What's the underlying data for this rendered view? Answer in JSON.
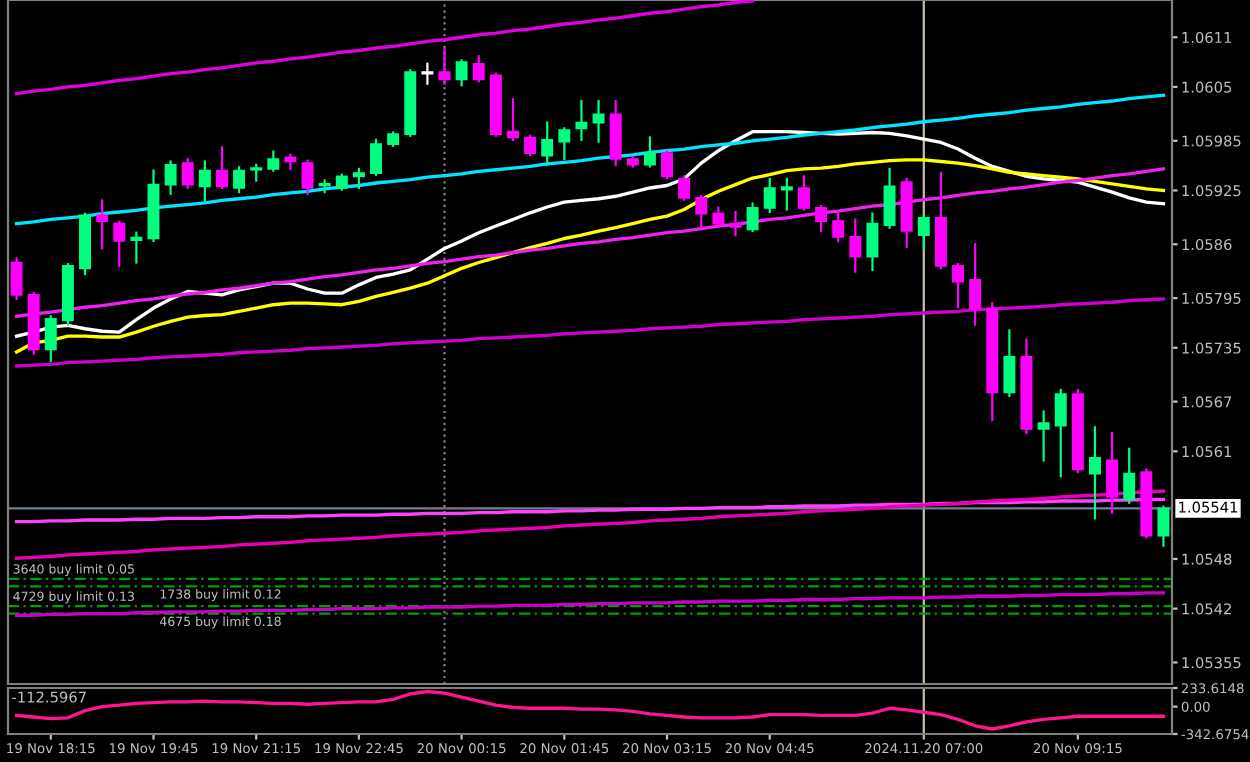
{
  "chart_data": [
    {
      "type": "candlestick",
      "categories": [
        null,
        null,
        "19 Nov 18:15",
        null,
        null,
        null,
        null,
        null,
        "19 Nov 19:45",
        null,
        null,
        null,
        null,
        null,
        "19 Nov 21:15",
        null,
        null,
        null,
        null,
        null,
        "19 Nov 22:45",
        null,
        null,
        null,
        null,
        null,
        "20 Nov 00:15",
        null,
        null,
        null,
        null,
        null,
        "20 Nov 01:45",
        null,
        null,
        null,
        null,
        null,
        "20 Nov 03:15",
        null,
        null,
        null,
        null,
        null,
        "20 Nov 04:45",
        null,
        null,
        null,
        null,
        null,
        null,
        null,
        null,
        "2024.11.20 07:00",
        null,
        null,
        null,
        null,
        null,
        null,
        null,
        null,
        "20 Nov 09:15",
        null,
        null,
        null,
        null,
        null
      ],
      "ohlc": [
        [
          1.05838,
          1.05843,
          1.05794,
          1.05799
        ],
        [
          1.05799,
          1.05801,
          1.05728,
          1.05733
        ],
        [
          1.05733,
          1.05773,
          1.05719,
          1.0577
        ],
        [
          1.05768,
          1.05836,
          1.05763,
          1.05834
        ],
        [
          1.05831,
          1.05897,
          1.05824,
          1.05895
        ],
        [
          1.05895,
          1.05913,
          1.05855,
          1.05888
        ],
        [
          1.05885,
          1.05887,
          1.05834,
          1.05864
        ],
        [
          1.05865,
          1.05874,
          1.05838,
          1.05868
        ],
        [
          1.05867,
          1.05949,
          1.05864,
          1.05932
        ],
        [
          1.05932,
          1.0596,
          1.05921,
          1.05956
        ],
        [
          1.05958,
          1.05963,
          1.05928,
          1.05932
        ],
        [
          1.0593,
          1.0596,
          1.05913,
          1.05949
        ],
        [
          1.05949,
          1.05977,
          1.05928,
          1.0593
        ],
        [
          1.05928,
          1.05953,
          1.05923,
          1.05949
        ],
        [
          1.0595,
          1.05956,
          1.05937,
          1.05952
        ],
        [
          1.05951,
          1.05972,
          1.05949,
          1.05963
        ],
        [
          1.05965,
          1.05968,
          1.05951,
          1.0596
        ],
        [
          1.05958,
          1.05961,
          1.05921,
          1.05928
        ],
        [
          1.05931,
          1.05937,
          1.05923,
          1.05933
        ],
        [
          1.05928,
          1.05944,
          1.05926,
          1.05942
        ],
        [
          1.05942,
          1.05951,
          1.05928,
          1.05946
        ],
        [
          1.05946,
          1.05986,
          1.05944,
          1.05981
        ],
        [
          1.05981,
          1.05995,
          1.05979,
          1.05993
        ],
        [
          1.05993,
          1.0607,
          1.05991,
          1.06068
        ],
        [
          1.06068,
          1.06078,
          1.06054,
          1.06066
        ],
        [
          1.06068,
          1.06096,
          1.06054,
          1.06059
        ],
        [
          1.06059,
          1.06082,
          1.06052,
          1.0608
        ],
        [
          1.06078,
          1.06087,
          1.06057,
          1.06059
        ],
        [
          1.06064,
          1.06066,
          1.05991,
          1.05993
        ],
        [
          1.05996,
          1.06035,
          1.05986,
          1.05989
        ],
        [
          1.05989,
          1.05991,
          1.05968,
          1.0597
        ],
        [
          1.05967,
          1.06007,
          1.05956,
          1.05986
        ],
        [
          1.05984,
          1.06,
          1.05963,
          1.05998
        ],
        [
          1.06,
          1.06033,
          1.05986,
          1.06007
        ],
        [
          1.06007,
          1.06033,
          1.05984,
          1.06017
        ],
        [
          1.06017,
          1.06033,
          1.05956,
          1.05963
        ],
        [
          1.05963,
          1.05965,
          1.05954,
          1.05956
        ],
        [
          1.05956,
          1.05989,
          1.05954,
          1.0597
        ],
        [
          1.0597,
          1.05972,
          1.0594,
          1.05942
        ],
        [
          1.05939,
          1.05942,
          1.05914,
          1.05916
        ],
        [
          1.05916,
          1.05918,
          1.05881,
          1.05897
        ],
        [
          1.05897,
          1.05904,
          1.05881,
          1.05885
        ],
        [
          1.05885,
          1.05899,
          1.05871,
          1.05881
        ],
        [
          1.05878,
          1.05909,
          1.05876,
          1.05904
        ],
        [
          1.05904,
          1.05939,
          1.05899,
          1.05928
        ],
        [
          1.05926,
          1.05939,
          1.05902,
          1.05929
        ],
        [
          1.05928,
          1.05942,
          1.05902,
          1.05904
        ],
        [
          1.05904,
          1.05906,
          1.05876,
          1.05888
        ],
        [
          1.05888,
          1.05897,
          1.05864,
          1.05869
        ],
        [
          1.05869,
          1.0589,
          1.05827,
          1.05845
        ],
        [
          1.05845,
          1.05897,
          1.05829,
          1.05885
        ],
        [
          1.05883,
          1.05951,
          1.0588,
          1.0593
        ],
        [
          1.05935,
          1.05939,
          1.05857,
          1.05876
        ],
        [
          1.05871,
          1.05894,
          1.05855,
          1.05892
        ],
        [
          1.05892,
          1.05946,
          1.05831,
          1.05834
        ],
        [
          1.05834,
          1.05836,
          1.05784,
          1.05815
        ],
        [
          1.05817,
          1.0586,
          1.05763,
          1.05782
        ],
        [
          1.05782,
          1.05789,
          1.05648,
          1.05681
        ],
        [
          1.05681,
          1.05756,
          1.05677,
          1.05724
        ],
        [
          1.05724,
          1.05745,
          1.05632,
          1.05637
        ],
        [
          1.05637,
          1.05658,
          1.05599,
          1.05644
        ],
        [
          1.05641,
          1.05684,
          1.0558,
          1.05679
        ],
        [
          1.05679,
          1.05684,
          1.05585,
          1.05588
        ],
        [
          1.05583,
          1.05639,
          1.05529,
          1.05602
        ],
        [
          1.05599,
          1.05632,
          1.05536,
          1.05555
        ],
        [
          1.05552,
          1.05613,
          1.05548,
          1.05583
        ],
        [
          1.05585,
          1.05588,
          1.05506,
          1.05508
        ],
        [
          1.05508,
          1.05543,
          1.05496,
          1.05541
        ]
      ],
      "colors": [
        "#ff00ff",
        "#ff00ff",
        "#00ff7f",
        "#00ff7f",
        "#00ff7f",
        "#ff00ff",
        "#ff00ff",
        "#00ff7f",
        "#00ff7f",
        "#00ff7f",
        "#ff00ff",
        "#00ff7f",
        "#ff00ff",
        "#00ff7f",
        "#00ff7f",
        "#00ff7f",
        "#ff00ff",
        "#ff00ff",
        "#00ff7f",
        "#00ff7f",
        "#00ff7f",
        "#00ff7f",
        "#00ff7f",
        "#00ff7f",
        "#ffffff",
        "#ff00ff",
        "#00ff7f",
        "#ff00ff",
        "#ff00ff",
        "#ff00ff",
        "#ff00ff",
        "#00ff7f",
        "#00ff7f",
        "#00ff7f",
        "#00ff7f",
        "#ff00ff",
        "#ff00ff",
        "#00ff7f",
        "#ff00ff",
        "#ff00ff",
        "#ff00ff",
        "#ff00ff",
        "#ff00ff",
        "#00ff7f",
        "#00ff7f",
        "#00ff7f",
        "#ff00ff",
        "#ff00ff",
        "#ff00ff",
        "#ff00ff",
        "#00ff7f",
        "#00ff7f",
        "#ff00ff",
        "#00ff7f",
        "#ff00ff",
        "#ff00ff",
        "#ff00ff",
        "#ff00ff",
        "#00ff7f",
        "#ff00ff",
        "#00ff7f",
        "#00ff7f",
        "#ff00ff",
        "#00ff7f",
        "#ff00ff",
        "#00ff7f",
        "#ff00ff",
        "#00ff7f"
      ],
      "series": [
        {
          "type": "line",
          "color": "#ffffff",
          "values": [
            1.05749,
            1.05754,
            1.0576,
            1.05762,
            1.05758,
            1.05755,
            1.05754,
            1.05769,
            1.05783,
            1.05794,
            1.05803,
            1.05801,
            1.05799,
            1.05805,
            1.05809,
            1.05813,
            1.05813,
            1.05806,
            1.05801,
            1.05801,
            1.05811,
            1.0582,
            1.05824,
            1.05829,
            1.05842,
            1.05855,
            1.05864,
            1.05874,
            1.05882,
            1.0589,
            1.05898,
            1.05905,
            1.05911,
            1.05913,
            1.05915,
            1.05918,
            1.05923,
            1.05928,
            1.05931,
            1.05939,
            1.05958,
            1.05973,
            1.05985,
            1.05996,
            1.05996,
            1.05996,
            1.05995,
            1.05994,
            1.05993,
            1.05994,
            1.05995,
            1.05994,
            1.05991,
            1.05987,
            1.05983,
            1.05975,
            1.05964,
            1.05954,
            1.05948,
            1.05942,
            1.05939,
            1.05937,
            1.05935,
            1.05929,
            1.05923,
            1.05916,
            1.05911,
            1.05909
          ]
        },
        {
          "type": "line",
          "color": "#ffff00",
          "values": [
            1.0573,
            1.05741,
            1.05744,
            1.05749,
            1.05749,
            1.05748,
            1.05748,
            1.05754,
            1.05761,
            1.05767,
            1.05772,
            1.05774,
            1.05775,
            1.05779,
            1.05783,
            1.05787,
            1.05789,
            1.05789,
            1.05788,
            1.05787,
            1.05791,
            1.05797,
            1.05802,
            1.05807,
            1.05813,
            1.05822,
            1.05831,
            1.05838,
            1.05844,
            1.0585,
            1.05856,
            1.05861,
            1.05867,
            1.05871,
            1.05876,
            1.0588,
            1.05885,
            1.0589,
            1.05894,
            1.05902,
            1.05914,
            1.05924,
            1.05932,
            1.0594,
            1.05944,
            1.05949,
            1.05951,
            1.05952,
            1.05954,
            1.05957,
            1.05959,
            1.05961,
            1.05962,
            1.05962,
            1.0596,
            1.05958,
            1.05955,
            1.05951,
            1.05947,
            1.05945,
            1.05943,
            1.05941,
            1.05939,
            1.05936,
            1.05933,
            1.0593,
            1.05927,
            1.05925
          ]
        },
        {
          "type": "line",
          "color": "#e000e0",
          "values": [
            1.06042,
            1.06045,
            1.06047,
            1.0605,
            1.06052,
            1.06055,
            1.06058,
            1.0606,
            1.06063,
            1.06066,
            1.06068,
            1.06071,
            1.06073,
            1.06076,
            1.06079,
            1.06081,
            1.06084,
            1.06086,
            1.06089,
            1.06092,
            1.06094,
            1.06097,
            1.06099,
            1.06102,
            1.06105,
            1.06107,
            1.0611,
            1.06113,
            1.06115,
            1.06118,
            1.0612,
            1.06123,
            1.06126,
            1.06128,
            1.06131,
            1.06133,
            1.06136,
            1.06139,
            1.06141,
            1.06144,
            1.06147,
            1.06149,
            1.06152,
            1.06154,
            null,
            null,
            null,
            null,
            null,
            null,
            null,
            null,
            null,
            null,
            null,
            null,
            null,
            null,
            null,
            null,
            null,
            null,
            null,
            null,
            null,
            null,
            null,
            null
          ]
        },
        {
          "type": "line",
          "color": "#00e5ff",
          "values": [
            1.05885,
            1.05887,
            1.0589,
            1.05892,
            1.05894,
            1.05897,
            1.05899,
            1.05901,
            1.05904,
            1.05906,
            1.05908,
            1.0591,
            1.05913,
            1.05915,
            1.05917,
            1.0592,
            1.05922,
            1.05924,
            1.05927,
            1.05929,
            1.05931,
            1.05934,
            1.05936,
            1.05938,
            1.05941,
            1.05943,
            1.05945,
            1.05948,
            1.0595,
            1.05952,
            1.05954,
            1.05957,
            1.05959,
            1.05961,
            1.05964,
            1.05966,
            1.05968,
            1.05971,
            1.05973,
            1.05975,
            1.05978,
            1.0598,
            1.05982,
            1.05985,
            1.05987,
            1.05989,
            1.05992,
            1.05994,
            1.05996,
            1.05998,
            1.06001,
            1.06003,
            1.06005,
            1.06008,
            1.0601,
            1.06012,
            1.06015,
            1.06017,
            1.06019,
            1.06022,
            1.06024,
            1.06026,
            1.06029,
            1.06031,
            1.06033,
            1.06036,
            1.06038,
            1.0604
          ]
        },
        {
          "type": "line",
          "color": "#f020f0",
          "values": [
            1.05773,
            1.05776,
            1.05778,
            1.05781,
            1.05784,
            1.05786,
            1.05789,
            1.05792,
            1.05794,
            1.05797,
            1.058,
            1.05802,
            1.05805,
            1.05807,
            1.0581,
            1.05813,
            1.05815,
            1.05818,
            1.05821,
            1.05823,
            1.05826,
            1.05829,
            1.05831,
            1.05834,
            1.05837,
            1.05839,
            1.05842,
            1.05845,
            1.05847,
            1.0585,
            1.05853,
            1.05855,
            1.05858,
            1.05861,
            1.05863,
            1.05866,
            1.05868,
            1.05871,
            1.05874,
            1.05876,
            1.05879,
            1.05882,
            1.05884,
            1.05887,
            1.0589,
            1.05892,
            1.05895,
            1.05898,
            1.059,
            1.05903,
            1.05906,
            1.05908,
            1.05911,
            1.05914,
            1.05916,
            1.05919,
            1.05922,
            1.05924,
            1.05927,
            1.05929,
            1.05932,
            1.05935,
            1.05937,
            1.0594,
            1.05943,
            1.05945,
            1.05948,
            1.05951
          ]
        },
        {
          "type": "line",
          "color": "#d000d0",
          "values": [
            1.05713,
            1.05714,
            1.05715,
            1.05717,
            1.05718,
            1.05719,
            1.0572,
            1.05721,
            1.05723,
            1.05724,
            1.05725,
            1.05726,
            1.05727,
            1.05729,
            1.0573,
            1.05731,
            1.05732,
            1.05734,
            1.05735,
            1.05736,
            1.05737,
            1.05738,
            1.0574,
            1.05741,
            1.05742,
            1.05743,
            1.05744,
            1.05746,
            1.05747,
            1.05748,
            1.05749,
            1.0575,
            1.05752,
            1.05753,
            1.05754,
            1.05755,
            1.05756,
            1.05758,
            1.05759,
            1.0576,
            1.05761,
            1.05763,
            1.05764,
            1.05765,
            1.05766,
            1.05767,
            1.05769,
            1.0577,
            1.05771,
            1.05772,
            1.05773,
            1.05775,
            1.05776,
            1.05777,
            1.05778,
            1.05779,
            1.05781,
            1.05782,
            1.05783,
            1.05784,
            1.05785,
            1.05787,
            1.05788,
            1.05789,
            1.0579,
            1.05792,
            1.05793,
            1.05794
          ]
        },
        {
          "type": "line",
          "color": "#ff40ff",
          "values": [
            1.05525,
            1.05525,
            1.05526,
            1.05526,
            1.05527,
            1.05527,
            1.05527,
            1.05528,
            1.05528,
            1.05529,
            1.05529,
            1.05529,
            1.0553,
            1.0553,
            1.05531,
            1.05531,
            1.05531,
            1.05532,
            1.05532,
            1.05533,
            1.05533,
            1.05533,
            1.05534,
            1.05534,
            1.05535,
            1.05535,
            1.05535,
            1.05536,
            1.05536,
            1.05537,
            1.05537,
            1.05537,
            1.05538,
            1.05538,
            1.05539,
            1.05539,
            1.0554,
            1.0554,
            1.0554,
            1.05541,
            1.05541,
            1.05542,
            1.05542,
            1.05542,
            1.05543,
            1.05543,
            1.05544,
            1.05544,
            1.05544,
            1.05545,
            1.05545,
            1.05546,
            1.05546,
            1.05546,
            1.05547,
            1.05547,
            1.05548,
            1.05548,
            1.05548,
            1.05549,
            1.05549,
            1.0555,
            1.0555,
            1.0555,
            1.05551,
            1.05551,
            1.05552,
            1.05552
          ]
        },
        {
          "type": "line",
          "color": "#e800b8",
          "values": [
            1.05481,
            1.05482,
            1.05483,
            1.05485,
            1.05486,
            1.05487,
            1.05488,
            1.05489,
            1.05491,
            1.05492,
            1.05493,
            1.05494,
            1.05495,
            1.05497,
            1.05498,
            1.05499,
            1.055,
            1.05502,
            1.05503,
            1.05504,
            1.05505,
            1.05506,
            1.05508,
            1.05509,
            1.0551,
            1.05511,
            1.05512,
            1.05514,
            1.05515,
            1.05516,
            1.05517,
            1.05518,
            1.0552,
            1.05521,
            1.05522,
            1.05523,
            1.05524,
            1.05526,
            1.05527,
            1.05528,
            1.05529,
            1.05531,
            1.05532,
            1.05533,
            1.05534,
            1.05535,
            1.05537,
            1.05538,
            1.05539,
            1.0554,
            1.05541,
            1.05543,
            1.05544,
            1.05545,
            1.05546,
            1.05547,
            1.05549,
            1.0555,
            1.05551,
            1.05552,
            1.05553,
            1.05555,
            1.05556,
            1.05557,
            1.05558,
            1.0556,
            1.05561,
            1.05562
          ]
        },
        {
          "type": "line",
          "color": "#c800c8",
          "values": [
            1.05412,
            1.05412,
            1.05413,
            1.05413,
            1.05414,
            1.05414,
            1.05414,
            1.05415,
            1.05415,
            1.05416,
            1.05416,
            1.05416,
            1.05417,
            1.05417,
            1.05418,
            1.05418,
            1.05418,
            1.05419,
            1.05419,
            1.0542,
            1.0542,
            1.0542,
            1.05421,
            1.05421,
            1.05422,
            1.05422,
            1.05422,
            1.05423,
            1.05423,
            1.05424,
            1.05424,
            1.05424,
            1.05425,
            1.05425,
            1.05426,
            1.05426,
            1.05427,
            1.05427,
            1.05427,
            1.05428,
            1.05428,
            1.05429,
            1.05429,
            1.05429,
            1.0543,
            1.0543,
            1.05431,
            1.05431,
            1.05431,
            1.05432,
            1.05432,
            1.05433,
            1.05433,
            1.05433,
            1.05434,
            1.05434,
            1.05435,
            1.05435,
            1.05435,
            1.05436,
            1.05436,
            1.05437,
            1.05437,
            1.05437,
            1.05438,
            1.05438,
            1.05439,
            1.05439
          ]
        }
      ],
      "ylim": [
        1.05329,
        1.06155
      ],
      "yticks": [
        1.0611,
        1.0605,
        1.05985,
        1.05925,
        1.0586,
        1.05795,
        1.05735,
        1.0567,
        1.0561,
        1.0548,
        1.0542,
        1.05355
      ],
      "tick_labels": "y",
      "ref_lines": [
        {
          "axis": "x",
          "value": "2024.11.20 07:00",
          "label": null,
          "color": "#c8bfa8",
          "line_style": "solid"
        },
        {
          "axis": "y",
          "value": 1.05541,
          "label": "1.05541",
          "color": "#708090",
          "line_style": "solid"
        },
        {
          "axis": "y",
          "value": 1.05456,
          "label": "3640 buy limit 0.05",
          "color": "#00a000",
          "line_style": "dashed"
        },
        {
          "axis": "y",
          "value": 1.05447,
          "label": "1738 buy limit 0.12",
          "color": "#00a000",
          "line_style": "dashed"
        },
        {
          "axis": "y",
          "value": 1.05423,
          "label": "4729 buy limit 0.13",
          "color": "#00a000",
          "line_style": "dashed"
        },
        {
          "axis": "y",
          "value": 1.05414,
          "label": "4675 buy limit 0.18",
          "color": "#00a000",
          "line_style": "dashed"
        }
      ]
    },
    {
      "type": "line",
      "categories": [
        null,
        null,
        "19 Nov 18:15",
        null,
        null,
        null,
        null,
        null,
        "19 Nov 19:45",
        null,
        null,
        null,
        null,
        null,
        "19 Nov 21:15",
        null,
        null,
        null,
        null,
        null,
        "19 Nov 22:45",
        null,
        null,
        null,
        null,
        null,
        "20 Nov 00:15",
        null,
        null,
        null,
        null,
        null,
        "20 Nov 01:45",
        null,
        null,
        null,
        null,
        null,
        "20 Nov 03:15",
        null,
        null,
        null,
        null,
        null,
        "20 Nov 04:45",
        null,
        null,
        null,
        null,
        null,
        null,
        null,
        null,
        "2024.11.20 07:00",
        null,
        null,
        null,
        null,
        null,
        null,
        null,
        null,
        "20 Nov 09:15",
        null,
        null,
        null,
        null,
        null
      ],
      "series": [
        {
          "type": "line",
          "color": "#ff1493",
          "values": [
            -110,
            -130,
            -150,
            -140,
            -50,
            0,
            20,
            40,
            50,
            60,
            60,
            70,
            60,
            60,
            50,
            40,
            40,
            30,
            40,
            50,
            60,
            60,
            90,
            160,
            190,
            170,
            120,
            70,
            20,
            -10,
            -20,
            -20,
            -20,
            -30,
            -30,
            -40,
            -60,
            -90,
            -110,
            -130,
            -140,
            -140,
            -140,
            -130,
            -100,
            -100,
            -100,
            -110,
            -110,
            -110,
            -80,
            -20,
            -40,
            -70,
            -100,
            -160,
            -240,
            -280,
            -240,
            -190,
            -160,
            -140,
            -120,
            -120,
            -120,
            -120,
            -120,
            -120
          ]
        }
      ],
      "ylim": [
        -342.6754,
        233.6148
      ],
      "yticks": [
        233.6148,
        {
          "value": 0,
          "label": "0.00"
        },
        -342.6754
      ],
      "annotations": [
        "-112.5967"
      ],
      "ref_lines": [
        {
          "axis": "x",
          "value": "2024.11.20 07:00",
          "label": null,
          "color": "#c8bfa8",
          "line_style": "solid"
        }
      ]
    }
  ]
}
